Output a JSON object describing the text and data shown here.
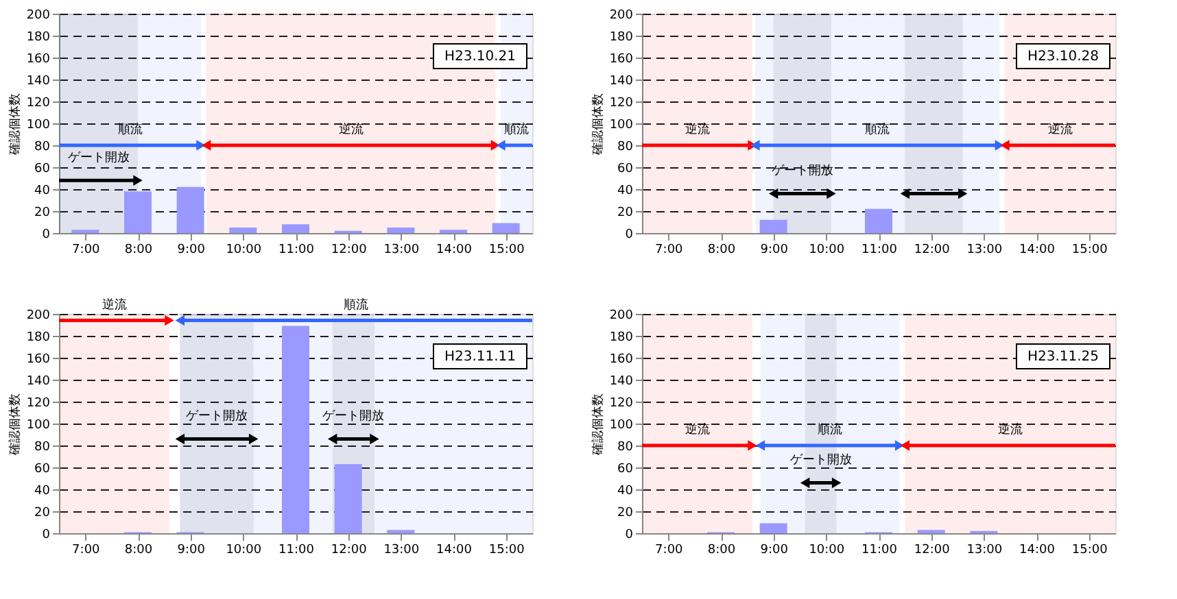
{
  "chart_data": [
    {
      "type": "bar",
      "ylabel": "確認個体数",
      "x": [
        7,
        8,
        9,
        10,
        11,
        12,
        13,
        14,
        15
      ],
      "values": [
        3,
        38,
        42,
        5,
        8,
        2,
        5,
        3,
        9
      ],
      "color": "#9999ff",
      "xlim": [
        6.5,
        15.5
      ],
      "xticks": [
        {
          "value": 7,
          "label": "7:00"
        },
        {
          "value": 8,
          "label": "8:00"
        },
        {
          "value": 9,
          "label": "9:00"
        },
        {
          "value": 10,
          "label": "10:00"
        },
        {
          "value": 11,
          "label": "11:00"
        },
        {
          "value": 12,
          "label": "12:00"
        },
        {
          "value": 13,
          "label": "13:00"
        },
        {
          "value": 14,
          "label": "14:00"
        },
        {
          "value": 15,
          "label": "15:00"
        }
      ],
      "ylim": [
        0,
        200
      ],
      "yticks": [
        0,
        20,
        40,
        60,
        80,
        100,
        120,
        140,
        160,
        180,
        200
      ],
      "grid": "y",
      "bands": [
        {
          "axis": "x",
          "from": 6.5,
          "to": 9.2,
          "label": "順流",
          "color": "#3366ff"
        },
        {
          "axis": "x",
          "from": 9.3,
          "to": 14.8,
          "label": "逆流",
          "color": "#ff0000"
        },
        {
          "axis": "x",
          "from": 14.9,
          "to": 15.5,
          "label": "順流",
          "color": "#3366ff"
        },
        {
          "axis": "x",
          "from": 6.5,
          "to": 8.0,
          "label": "ゲート開放",
          "color": "#000000"
        }
      ],
      "annotations": [
        "H23.10.21"
      ]
    },
    {
      "type": "bar",
      "ylabel": "確認個体数",
      "x": [
        7,
        8,
        9,
        10,
        11,
        12,
        13,
        14,
        15
      ],
      "values": [
        0,
        0,
        12,
        0,
        22,
        0,
        0,
        0,
        0
      ],
      "color": "#9999ff",
      "xlim": [
        6.5,
        15.5
      ],
      "xticks": [
        {
          "value": 7,
          "label": "7:00"
        },
        {
          "value": 8,
          "label": "8:00"
        },
        {
          "value": 9,
          "label": "9:00"
        },
        {
          "value": 10,
          "label": "10:00"
        },
        {
          "value": 11,
          "label": "11:00"
        },
        {
          "value": 12,
          "label": "12:00"
        },
        {
          "value": 13,
          "label": "13:00"
        },
        {
          "value": 14,
          "label": "14:00"
        },
        {
          "value": 15,
          "label": "15:00"
        }
      ],
      "ylim": [
        0,
        200
      ],
      "yticks": [
        0,
        20,
        40,
        60,
        80,
        100,
        120,
        140,
        160,
        180,
        200
      ],
      "grid": "y",
      "bands": [
        {
          "axis": "x",
          "from": 6.5,
          "to": 8.6,
          "label": "逆流",
          "color": "#ff0000"
        },
        {
          "axis": "x",
          "from": 8.65,
          "to": 13.3,
          "label": "順流",
          "color": "#3366ff"
        },
        {
          "axis": "x",
          "from": 13.4,
          "to": 15.5,
          "label": "逆流",
          "color": "#ff0000"
        },
        {
          "axis": "x",
          "from": 9.0,
          "to": 10.1,
          "label": "ゲート開放",
          "color": "#000000"
        },
        {
          "axis": "x",
          "from": 11.5,
          "to": 12.6,
          "label": null,
          "color": "#000000"
        }
      ],
      "annotations": [
        "H23.10.28"
      ]
    },
    {
      "type": "bar",
      "ylabel": "確認個体数",
      "x": [
        7,
        8,
        9,
        10,
        11,
        12,
        13,
        14,
        15
      ],
      "values": [
        0,
        1,
        1,
        0,
        189,
        63,
        3,
        0,
        0
      ],
      "color": "#9999ff",
      "xlim": [
        6.5,
        15.5
      ],
      "xticks": [
        {
          "value": 7,
          "label": "7:00"
        },
        {
          "value": 8,
          "label": "8:00"
        },
        {
          "value": 9,
          "label": "9:00"
        },
        {
          "value": 10,
          "label": "10:00"
        },
        {
          "value": 11,
          "label": "11:00"
        },
        {
          "value": 12,
          "label": "12:00"
        },
        {
          "value": 13,
          "label": "13:00"
        },
        {
          "value": 14,
          "label": "14:00"
        },
        {
          "value": 15,
          "label": "15:00"
        }
      ],
      "ylim": [
        0,
        200
      ],
      "yticks": [
        0,
        20,
        40,
        60,
        80,
        100,
        120,
        140,
        160,
        180,
        200
      ],
      "grid": "y",
      "bands": [
        {
          "axis": "x",
          "from": 6.5,
          "to": 8.6,
          "label": "逆流",
          "color": "#ff0000"
        },
        {
          "axis": "x",
          "from": 8.8,
          "to": 15.5,
          "label": "順流",
          "color": "#3366ff"
        },
        {
          "axis": "x",
          "from": 8.8,
          "to": 10.2,
          "label": "ゲート開放",
          "color": "#000000"
        },
        {
          "axis": "x",
          "from": 11.7,
          "to": 12.5,
          "label": "ゲート開放",
          "color": "#000000"
        }
      ],
      "annotations": [
        "H23.11.11"
      ]
    },
    {
      "type": "bar",
      "ylabel": "確認個体数",
      "x": [
        7,
        8,
        9,
        10,
        11,
        12,
        13,
        14,
        15
      ],
      "values": [
        0,
        1,
        9,
        0,
        1,
        3,
        2,
        0,
        0
      ],
      "color": "#9999ff",
      "xlim": [
        6.5,
        15.5
      ],
      "xticks": [
        {
          "value": 7,
          "label": "7:00"
        },
        {
          "value": 8,
          "label": "8:00"
        },
        {
          "value": 9,
          "label": "9:00"
        },
        {
          "value": 10,
          "label": "10:00"
        },
        {
          "value": 11,
          "label": "11:00"
        },
        {
          "value": 12,
          "label": "12:00"
        },
        {
          "value": 13,
          "label": "13:00"
        },
        {
          "value": 14,
          "label": "14:00"
        },
        {
          "value": 15,
          "label": "15:00"
        }
      ],
      "ylim": [
        0,
        200
      ],
      "yticks": [
        0,
        20,
        40,
        60,
        80,
        100,
        120,
        140,
        160,
        180,
        200
      ],
      "grid": "y",
      "bands": [
        {
          "axis": "x",
          "from": 6.5,
          "to": 8.6,
          "label": "逆流",
          "color": "#ff0000"
        },
        {
          "axis": "x",
          "from": 8.75,
          "to": 11.4,
          "label": "順流",
          "color": "#3366ff"
        },
        {
          "axis": "x",
          "from": 11.5,
          "to": 15.5,
          "label": "逆流",
          "color": "#ff0000"
        },
        {
          "axis": "x",
          "from": 9.6,
          "to": 10.2,
          "label": "ゲート開放",
          "color": "#000000"
        }
      ],
      "annotations": [
        "H23.11.25"
      ]
    }
  ]
}
